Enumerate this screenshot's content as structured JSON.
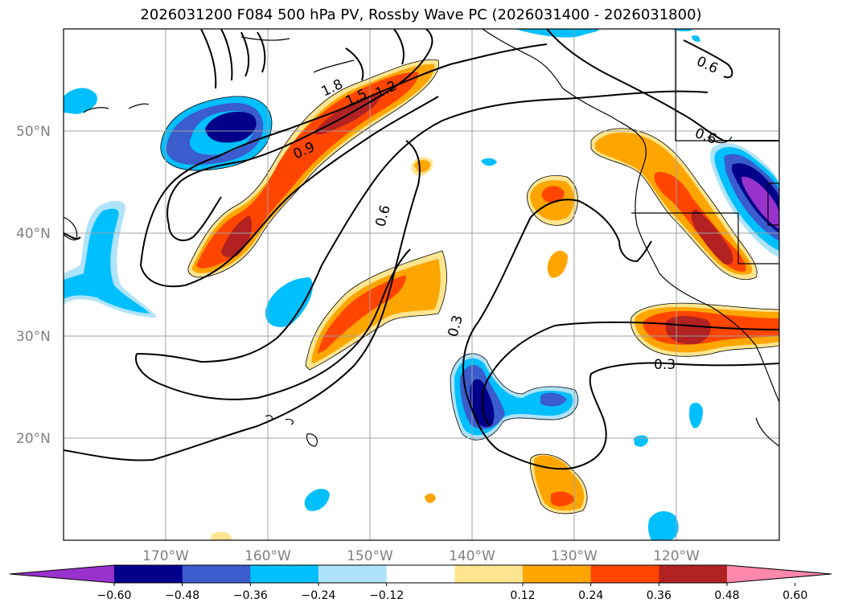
{
  "title": "2026031200 F084 500 hPa PV, Rossby Wave PC (2026031400 - 2026031800)",
  "lat_labels": [
    "50°N",
    "40°N",
    "30°N",
    "20°N"
  ],
  "lon_labels": [
    "170°W",
    "160°W",
    "150°W",
    "140°W",
    "130°W",
    "120°W"
  ],
  "contour_labels": [
    "1.8",
    "1.5",
    "1.2",
    "0.9",
    "0.6",
    "0.6",
    "0.6",
    "0.3",
    "0.3"
  ],
  "colorbar": {
    "tick_labels": [
      "−0.60",
      "−0.48",
      "−0.36",
      "−0.24",
      "−0.12",
      "0.12",
      "0.24",
      "0.36",
      "0.48",
      "0.60"
    ],
    "colors": [
      "#9932cc",
      "#00008b",
      "#3a5ccc",
      "#00bfff",
      "#afe3fa",
      "#ffffff",
      "#ffe58f",
      "#ffa500",
      "#ff4500",
      "#b22222",
      "#ff88aa"
    ]
  }
}
